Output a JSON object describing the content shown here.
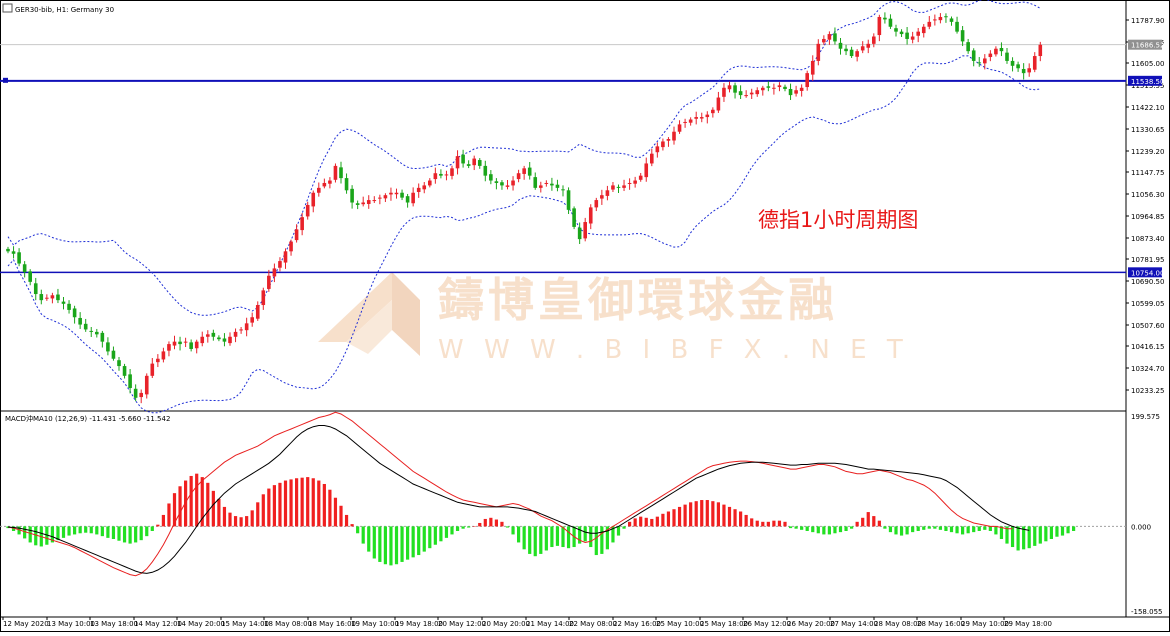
{
  "header": {
    "icon": "chart-window-icon",
    "title": "GER30-bib, H1:  Germany 30"
  },
  "annotation": "德指1小时周期图",
  "watermark": {
    "name": "鑄博皇御環球金融",
    "url": "W W W . B I B F X . N E T"
  },
  "colors": {
    "bull_candle": "#e8222a",
    "bear_candle": "#1aa51a",
    "bands": "#1f2fd6",
    "hline": "#1010b8",
    "macd_pos": "#f02020",
    "macd_neg": "#22e022",
    "signal_red": "#e82020",
    "signal_black": "#000000",
    "price_box": "#1010b8",
    "current_price_box": "#909090",
    "annotation": "#e81818",
    "watermark": "#f2c7a2"
  },
  "price_axis": {
    "ticks": [
      "11787.90",
      "11696.45",
      "11605.00",
      "11513.55",
      "11422.10",
      "11330.65",
      "11239.20",
      "11147.75",
      "11056.30",
      "10964.85",
      "10873.40",
      "10781.95",
      "10690.50",
      "10599.05",
      "10507.60",
      "10416.15",
      "10324.70",
      "10233.25"
    ],
    "hline_upper_label": "11538.50",
    "hline_lower_label": "10754.00",
    "current_label": "11686.52"
  },
  "macd": {
    "label": "MACD沖MA10 (12,26,9) -11.431 -5.660 -11.542",
    "axis_top": "199.575",
    "axis_zero": "0.000",
    "axis_bottom": "-158.055"
  },
  "time_axis": {
    "labels": [
      "12 May 2020",
      "13 May 10:00",
      "13 May 18:00",
      "14 May 12:00",
      "14 May 20:00",
      "15 May 14:00",
      "18 May 08:00",
      "18 May 16:00",
      "19 May 10:00",
      "19 May 18:00",
      "20 May 12:00",
      "20 May 20:00",
      "21 May 14:00",
      "22 May 08:00",
      "22 May 16:00",
      "25 May 10:00",
      "25 May 18:00",
      "26 May 12:00",
      "26 May 20:00",
      "27 May 14:00",
      "28 May 08:00",
      "28 May 16:00",
      "29 May 10:00",
      "29 May 18:00"
    ]
  },
  "chart_data": [
    {
      "type": "candlestick",
      "title": "GER30-bib, H1:  Germany 30",
      "ylim": [
        10190,
        11845
      ],
      "horizontal_lines": [
        11538.5,
        10754.0
      ],
      "current_price": 11686.52,
      "close": [
        10840,
        10830,
        10790,
        10755,
        10715,
        10665,
        10640,
        10650,
        10660,
        10640,
        10625,
        10600,
        10570,
        10540,
        10520,
        10510,
        10500,
        10470,
        10430,
        10400,
        10370,
        10330,
        10280,
        10240,
        10260,
        10330,
        10380,
        10400,
        10430,
        10460,
        10470,
        10460,
        10470,
        10440,
        10470,
        10490,
        10500,
        10490,
        10480,
        10470,
        10490,
        10510,
        10520,
        10545,
        10570,
        10620,
        10680,
        10740,
        10770,
        10800,
        10840,
        10880,
        10930,
        10980,
        11030,
        11080,
        11100,
        11120,
        11130,
        11190,
        11140,
        11090,
        11040,
        11030,
        11040,
        11050,
        11050,
        11060,
        11070,
        11080,
        11080,
        11060,
        11040,
        11080,
        11100,
        11110,
        11130,
        11160,
        11150,
        11155,
        11180,
        11230,
        11200,
        11190,
        11220,
        11190,
        11150,
        11130,
        11120,
        11110,
        11110,
        11130,
        11160,
        11180,
        11150,
        11100,
        11110,
        11120,
        11110,
        11100,
        11090,
        11010,
        10940,
        10890,
        10960,
        11020,
        11050,
        11070,
        11090,
        11110,
        11100,
        11110,
        11120,
        11130,
        11150,
        11200,
        11240,
        11270,
        11290,
        11300,
        11330,
        11360,
        11370,
        11380,
        11390,
        11390,
        11400,
        11420,
        11470,
        11510,
        11520,
        11490,
        11480,
        11480,
        11490,
        11500,
        11510,
        11510,
        11510,
        11520,
        11505,
        11480,
        11500,
        11510,
        11570,
        11620,
        11690,
        11710,
        11730,
        11700,
        11670,
        11660,
        11640,
        11660,
        11680,
        11690,
        11720,
        11800,
        11790,
        11760,
        11740,
        11730,
        11710,
        11720,
        11740,
        11760,
        11780,
        11790,
        11800,
        11800,
        11780,
        11740,
        11700,
        11660,
        11620,
        11610,
        11630,
        11650,
        11670,
        11660,
        11620,
        11600,
        11590,
        11570,
        11590,
        11640,
        11686
      ],
      "indicators": [
        "Bollinger Bands",
        "MACD"
      ]
    },
    {
      "type": "bar",
      "title": "MACD沖MA10 (12,26,9) -11.431 -5.660 -11.542",
      "ylim": [
        -158.055,
        199.575
      ],
      "histogram": [
        -3,
        -8,
        -14,
        -21,
        -28,
        -33,
        -35,
        -32,
        -28,
        -24,
        -20,
        -16,
        -14,
        -12,
        -11,
        -12,
        -14,
        -17,
        -20,
        -22,
        -25,
        -28,
        -30,
        -28,
        -24,
        -17,
        -8,
        3,
        20,
        40,
        58,
        70,
        80,
        88,
        92,
        86,
        76,
        62,
        48,
        34,
        24,
        18,
        16,
        18,
        28,
        42,
        56,
        66,
        72,
        76,
        80,
        82,
        84,
        85,
        86,
        84,
        80,
        74,
        64,
        50,
        36,
        20,
        4,
        -12,
        -30,
        -44,
        -56,
        -62,
        -66,
        -68,
        -66,
        -62,
        -58,
        -54,
        -50,
        -44,
        -38,
        -32,
        -26,
        -20,
        -14,
        -8,
        -4,
        -2,
        0,
        6,
        13,
        15,
        12,
        8,
        -2,
        -14,
        -28,
        -40,
        -48,
        -52,
        -48,
        -42,
        -36,
        -34,
        -36,
        -38,
        -36,
        -30,
        -26,
        -36,
        -50,
        -48,
        -40,
        -28,
        -16,
        -4,
        8,
        14,
        17,
        15,
        13,
        17,
        22,
        26,
        30,
        34,
        38,
        42,
        44,
        46,
        46,
        44,
        42,
        38,
        34,
        30,
        26,
        20,
        14,
        10,
        8,
        8,
        10,
        10,
        8,
        -3,
        -4,
        -6,
        -8,
        -10,
        -12,
        -14,
        -14,
        -12,
        -10,
        -8,
        -4,
        8,
        15,
        25,
        18,
        10,
        -4,
        -10,
        -14,
        -16,
        -14,
        -10,
        -8,
        -6,
        -4,
        -4,
        -6,
        -8,
        -10,
        -12,
        -14,
        -12,
        -10,
        -8,
        -6,
        -8,
        -14,
        -22,
        -30,
        -36,
        -42,
        -40,
        -38,
        -34,
        -30,
        -26,
        -22,
        -18,
        -16,
        -12,
        -8
      ],
      "signal_red": [
        -1,
        -3,
        -6,
        -9,
        -12,
        -15,
        -18,
        -21,
        -24,
        -27,
        -30,
        -33,
        -37,
        -42,
        -47,
        -52,
        -57,
        -62,
        -67,
        -72,
        -76,
        -80,
        -84,
        -86,
        -82,
        -74,
        -62,
        -48,
        -32,
        -14,
        6,
        24,
        42,
        58,
        70,
        80,
        88,
        96,
        104,
        112,
        118,
        124,
        128,
        132,
        136,
        140,
        146,
        152,
        158,
        162,
        166,
        170,
        174,
        178,
        182,
        186,
        190,
        192,
        195,
        199,
        196,
        190,
        184,
        176,
        168,
        160,
        152,
        144,
        136,
        128,
        120,
        112,
        104,
        96,
        90,
        84,
        78,
        72,
        66,
        60,
        55,
        50,
        46,
        44,
        42,
        40,
        38,
        36,
        34,
        36,
        38,
        40,
        38,
        34,
        30,
        24,
        18,
        14,
        10,
        4,
        -2,
        -10,
        -18,
        -24,
        -28,
        -26,
        -20,
        -12,
        -6,
        0,
        6,
        12,
        18,
        24,
        30,
        36,
        42,
        48,
        54,
        60,
        66,
        72,
        78,
        84,
        90,
        96,
        102,
        106,
        108,
        110,
        112,
        113,
        114,
        114,
        113,
        112,
        110,
        108,
        106,
        104,
        102,
        100,
        100,
        102,
        104,
        106,
        108,
        108,
        106,
        104,
        100,
        96,
        94,
        92,
        92,
        94,
        96,
        98,
        96,
        94,
        90,
        86,
        82,
        80,
        76,
        72,
        66,
        58,
        48,
        38,
        28,
        20,
        14,
        10,
        6,
        4,
        2,
        0,
        0,
        -2,
        -4,
        -4
      ],
      "signal_black": [
        -1,
        -2,
        -3,
        -5,
        -7,
        -9,
        -12,
        -15,
        -18,
        -22,
        -26,
        -30,
        -34,
        -38,
        -42,
        -46,
        -50,
        -54,
        -58,
        -62,
        -66,
        -70,
        -74,
        -78,
        -81,
        -82,
        -80,
        -76,
        -70,
        -62,
        -52,
        -40,
        -28,
        -14,
        0,
        14,
        26,
        38,
        48,
        58,
        66,
        74,
        80,
        86,
        92,
        98,
        104,
        110,
        118,
        126,
        136,
        146,
        156,
        164,
        170,
        174,
        176,
        176,
        174,
        170,
        164,
        158,
        150,
        142,
        134,
        126,
        118,
        110,
        104,
        98,
        92,
        86,
        80,
        74,
        70,
        66,
        62,
        58,
        54,
        50,
        46,
        42,
        40,
        38,
        36,
        34,
        34,
        34,
        34,
        34,
        34,
        33,
        32,
        30,
        28,
        26,
        22,
        18,
        14,
        10,
        6,
        2,
        -2,
        -6,
        -10,
        -12,
        -12,
        -10,
        -8,
        -4,
        0,
        6,
        12,
        18,
        24,
        30,
        36,
        42,
        48,
        54,
        60,
        66,
        72,
        78,
        84,
        88,
        92,
        96,
        100,
        103,
        106,
        108,
        110,
        111,
        112,
        112,
        112,
        111,
        110,
        109,
        108,
        107,
        107,
        108,
        108,
        109,
        110,
        110,
        110,
        110,
        109,
        108,
        106,
        104,
        102,
        100,
        100,
        99,
        98,
        97,
        96,
        95,
        94,
        93,
        92,
        90,
        88,
        86,
        84,
        80,
        74,
        68,
        60,
        52,
        44,
        36,
        28,
        20,
        14,
        8,
        4,
        0,
        -3,
        -5,
        -7
      ]
    }
  ]
}
